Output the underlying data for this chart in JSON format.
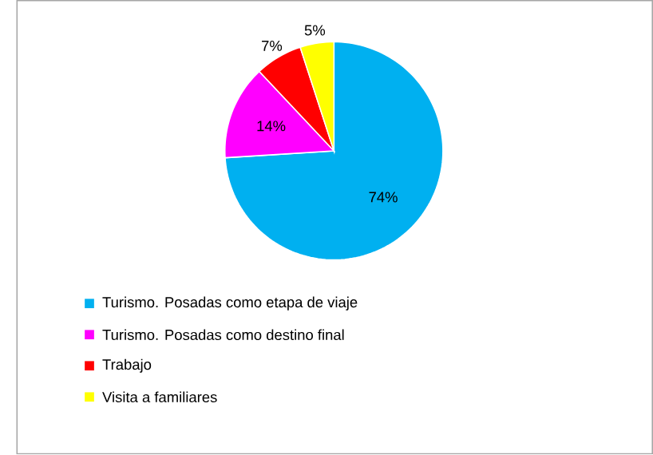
{
  "chart_data": {
    "type": "pie",
    "categories": [
      "Turismo. Posadas como etapa de viaje",
      "Turismo. Posadas como destino final",
      "Trabajo",
      "Visita a familiares"
    ],
    "values": [
      74,
      14,
      7,
      5
    ],
    "colors": [
      "#00b0f0",
      "#ff00ff",
      "#ff0000",
      "#ffff00"
    ],
    "value_labels": [
      "74%",
      "14%",
      "7%",
      "5%"
    ],
    "legend": "bottom"
  }
}
